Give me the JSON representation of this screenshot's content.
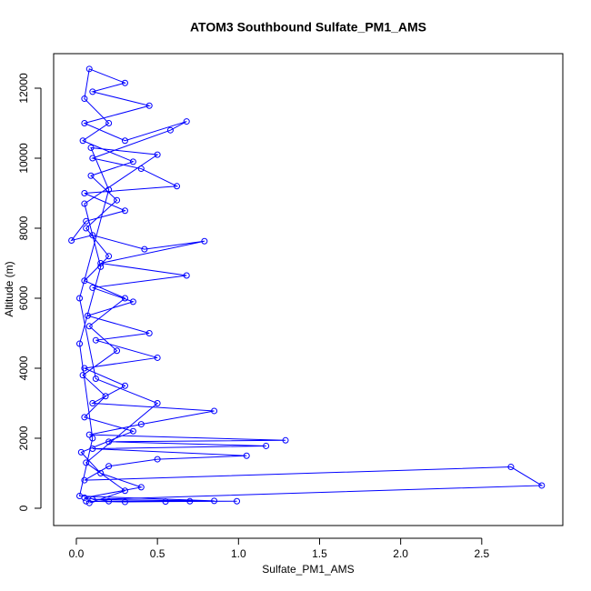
{
  "chart_data": {
    "type": "line",
    "title": "ATOM3 Southbound Sulfate_PM1_AMS",
    "x_label": "Sulfate_PM1_AMS",
    "y_label": "Altitude (m)",
    "color": "#0000ff",
    "markers": true,
    "x": [
      0.06,
      0.3,
      0.55,
      0.99,
      0.1,
      2.87,
      2.68,
      0.05,
      0.2,
      0.5,
      1.05,
      0.1,
      1.17,
      0.2,
      1.29,
      0.08,
      0.4,
      0.85,
      0.1,
      0.3,
      0.05,
      0.5,
      0.12,
      0.45,
      0.07,
      0.35,
      0.1,
      0.68,
      0.15,
      0.79,
      0.42,
      0.1,
      -0.03,
      0.06,
      0.3,
      0.05,
      0.62,
      0.4,
      0.1,
      0.58,
      0.68,
      0.3,
      0.05,
      0.45,
      0.1,
      0.3,
      0.08,
      0.05,
      0.2,
      0.04,
      0.35,
      0.09,
      0.25,
      0.06,
      0.2,
      0.05,
      0.3,
      0.08,
      0.25,
      0.04,
      0.18,
      0.05,
      0.35,
      0.03,
      0.15,
      0.4,
      0.05,
      0.2,
      0.7,
      0.85,
      0.02,
      0.1,
      0.02,
      0.15,
      0.05,
      0.5,
      0.09,
      0.2,
      0.02,
      0.12,
      0.5,
      0.06,
      0.3,
      0.08
    ],
    "values": [
      200,
      180,
      190,
      200,
      250,
      650,
      1180,
      800,
      1200,
      1400,
      1500,
      1700,
      1780,
      1900,
      1940,
      2100,
      2400,
      2780,
      3000,
      3500,
      4000,
      4300,
      4800,
      5000,
      5500,
      5900,
      6300,
      6650,
      7000,
      7630,
      7400,
      7800,
      7650,
      8200,
      8500,
      9000,
      9200,
      9700,
      10000,
      10800,
      11050,
      10500,
      11000,
      11500,
      11900,
      12150,
      12550,
      11700,
      11000,
      10500,
      9900,
      9500,
      8800,
      8000,
      7200,
      6500,
      6000,
      5200,
      4500,
      3800,
      3200,
      2600,
      2200,
      1600,
      1000,
      600,
      300,
      200,
      200,
      210,
      350,
      2000,
      4700,
      6900,
      8700,
      10100,
      10300,
      9100,
      6000,
      3700,
      3000,
      1300,
      500,
      150
    ],
    "xlim": [
      -0.14,
      3.0
    ],
    "ylim": [
      -494,
      12987
    ],
    "xticks": [
      {
        "value": 0,
        "label": "0.0"
      },
      0.5,
      {
        "value": 1,
        "label": "1.0"
      },
      1.5,
      {
        "value": 2,
        "label": "2.0"
      },
      2.5
    ],
    "yticks": [
      0,
      2000,
      4000,
      6000,
      8000,
      10000,
      12000
    ]
  }
}
